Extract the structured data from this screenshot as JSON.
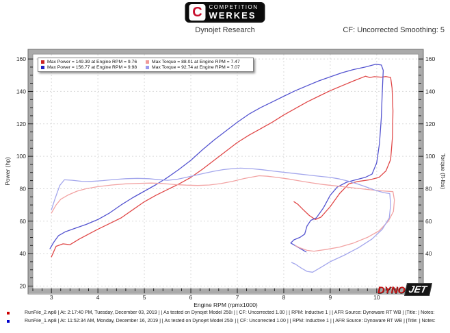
{
  "header": {
    "logo": {
      "emblem_letter": "C",
      "brand_top": "COMPETITION",
      "brand_bottom": "WERKES"
    },
    "subtitle": "Dynojet Research",
    "settings": "CF: Uncorrected Smoothing: 5"
  },
  "legend": {
    "items": [
      {
        "label": "Max Power = 149.39 at Engine RPM = 9.76",
        "color": "#cc2222"
      },
      {
        "label": "Max Torque = 88.01 at Engine RPM = 7.47",
        "color": "#ef9a9a"
      },
      {
        "label": "Max Power = 156.77 at Engine RPM = 9.98",
        "color": "#2424c4"
      },
      {
        "label": "Max Torque = 92.74 at Engine RPM = 7.07",
        "color": "#9a9aee"
      }
    ]
  },
  "watermark": {
    "dyno": "DYNO",
    "jet": "JET"
  },
  "footer": {
    "runs": [
      {
        "color": "#cc0000",
        "text": "RunFile_2.wp8 [ At: 2:17:40 PM, Tuesday, December 03, 2019 ] [ As tested on Dynojet Model 250i ] [ CF: Uncorrected 1.00 ] [ RPM: Inductive 1 ] [ AFR Source: Dynoware RT WB ] [Title: ]   Notes:"
      },
      {
        "color": "#0000cc",
        "text": "RunFile_1.wp8 [ At: 11:52:34 AM, Monday, December 16, 2019 ] [ As tested on Dynojet Model 250i ] [ CF: Uncorrected 1.00 ] [ RPM: Inductive 1 ] [ AFR Source: Dynoware RT WB ] [Title: ]   Notes:"
      }
    ]
  },
  "chart_data": {
    "type": "line",
    "xlabel": "Engine RPM (rpmx1000)",
    "ylabel_left": "Power (hp)",
    "ylabel_right": "Torque (ft-lbs)",
    "xlim": [
      2.6,
      10.9
    ],
    "ylim": [
      18.5,
      163
    ],
    "x_major_ticks": [
      3,
      4,
      5,
      6,
      7,
      8,
      9,
      10
    ],
    "x_minor_step": 0.2,
    "y_major_ticks": [
      20,
      40,
      60,
      80,
      100,
      120,
      140,
      160
    ],
    "y_minor_step": 5,
    "grid": "dashed",
    "legend_position": "top-left",
    "series": [
      {
        "name": "RunFile_2 Power (hp)",
        "color": "#e04848",
        "max_label": "Max Power = 149.39 at Engine RPM = 9.76",
        "points": [
          [
            3.0,
            38
          ],
          [
            3.1,
            44.5
          ],
          [
            3.25,
            46
          ],
          [
            3.4,
            45.5
          ],
          [
            3.6,
            49
          ],
          [
            3.8,
            52
          ],
          [
            4.0,
            55
          ],
          [
            4.25,
            58.5
          ],
          [
            4.5,
            62
          ],
          [
            4.75,
            67
          ],
          [
            5.0,
            72
          ],
          [
            5.25,
            76
          ],
          [
            5.5,
            79.5
          ],
          [
            5.75,
            83
          ],
          [
            6.0,
            87
          ],
          [
            6.25,
            92
          ],
          [
            6.5,
            97.5
          ],
          [
            6.75,
            103
          ],
          [
            7.0,
            108.5
          ],
          [
            7.25,
            113
          ],
          [
            7.5,
            117
          ],
          [
            7.75,
            121
          ],
          [
            8.0,
            125.5
          ],
          [
            8.25,
            129.5
          ],
          [
            8.5,
            133.5
          ],
          [
            8.75,
            137
          ],
          [
            9.0,
            140.5
          ],
          [
            9.25,
            143.5
          ],
          [
            9.5,
            146.5
          ],
          [
            9.76,
            149.4
          ],
          [
            9.85,
            148.6
          ],
          [
            9.95,
            149.1
          ],
          [
            10.1,
            148.8
          ],
          [
            10.2,
            149.2
          ],
          [
            10.3,
            148.6
          ],
          [
            10.33,
            142
          ],
          [
            10.35,
            128
          ],
          [
            10.34,
            112
          ],
          [
            10.3,
            98
          ],
          [
            10.2,
            91
          ],
          [
            10.05,
            87
          ],
          [
            9.85,
            85.5
          ],
          [
            9.6,
            84.5
          ],
          [
            9.4,
            83
          ],
          [
            9.2,
            77
          ],
          [
            9.0,
            69
          ],
          [
            8.8,
            62.5
          ],
          [
            8.68,
            61
          ],
          [
            8.55,
            63.5
          ],
          [
            8.42,
            67
          ],
          [
            8.3,
            70.5
          ],
          [
            8.22,
            72
          ]
        ]
      },
      {
        "name": "RunFile_1 Power (hp)",
        "color": "#5454d0",
        "max_label": "Max Power = 156.77 at Engine RPM = 9.98",
        "points": [
          [
            2.97,
            43
          ],
          [
            3.05,
            47
          ],
          [
            3.15,
            51
          ],
          [
            3.3,
            53.5
          ],
          [
            3.5,
            55.5
          ],
          [
            3.75,
            58
          ],
          [
            4.0,
            61
          ],
          [
            4.25,
            65
          ],
          [
            4.5,
            70
          ],
          [
            4.75,
            74.5
          ],
          [
            5.0,
            78.5
          ],
          [
            5.25,
            82.5
          ],
          [
            5.5,
            87
          ],
          [
            5.75,
            92
          ],
          [
            6.0,
            97.5
          ],
          [
            6.25,
            104
          ],
          [
            6.5,
            110
          ],
          [
            6.75,
            115.5
          ],
          [
            7.0,
            121
          ],
          [
            7.25,
            126
          ],
          [
            7.5,
            130
          ],
          [
            7.75,
            133.5
          ],
          [
            8.0,
            137
          ],
          [
            8.25,
            140.5
          ],
          [
            8.5,
            143.5
          ],
          [
            8.75,
            146.5
          ],
          [
            9.0,
            149
          ],
          [
            9.25,
            151.5
          ],
          [
            9.5,
            153.5
          ],
          [
            9.75,
            155
          ],
          [
            9.98,
            156.8
          ],
          [
            10.1,
            156.3
          ],
          [
            10.14,
            153
          ],
          [
            10.12,
            140
          ],
          [
            10.1,
            124
          ],
          [
            10.06,
            108
          ],
          [
            10.0,
            96
          ],
          [
            9.9,
            89
          ],
          [
            9.75,
            87
          ],
          [
            9.55,
            85.5
          ],
          [
            9.35,
            84
          ],
          [
            9.15,
            81
          ],
          [
            9.0,
            76
          ],
          [
            8.85,
            68
          ],
          [
            8.7,
            62
          ],
          [
            8.58,
            60.5
          ],
          [
            8.5,
            57
          ],
          [
            8.45,
            52
          ],
          [
            8.35,
            50
          ],
          [
            8.22,
            48.5
          ],
          [
            8.15,
            46.5
          ],
          [
            8.3,
            44
          ],
          [
            8.48,
            41
          ]
        ]
      },
      {
        "name": "RunFile_2 Torque (ft-lbs)",
        "color": "#f2a3a3",
        "max_label": "Max Torque = 88.01 at Engine RPM = 7.47",
        "points": [
          [
            3.0,
            65
          ],
          [
            3.1,
            70
          ],
          [
            3.2,
            73.5
          ],
          [
            3.35,
            76
          ],
          [
            3.55,
            78.5
          ],
          [
            3.75,
            80
          ],
          [
            4.0,
            81.3
          ],
          [
            4.3,
            82.3
          ],
          [
            4.6,
            83
          ],
          [
            4.9,
            83.3
          ],
          [
            5.15,
            83.5
          ],
          [
            5.4,
            83.2
          ],
          [
            5.65,
            82.6
          ],
          [
            5.9,
            82.2
          ],
          [
            6.15,
            82
          ],
          [
            6.4,
            82.3
          ],
          [
            6.65,
            83.2
          ],
          [
            6.9,
            84.6
          ],
          [
            7.15,
            86.3
          ],
          [
            7.47,
            88
          ],
          [
            7.65,
            87.7
          ],
          [
            7.85,
            87
          ],
          [
            8.1,
            86
          ],
          [
            8.35,
            84.8
          ],
          [
            8.6,
            83.6
          ],
          [
            8.85,
            82.6
          ],
          [
            9.1,
            81.8
          ],
          [
            9.35,
            81
          ],
          [
            9.6,
            80.2
          ],
          [
            9.85,
            79.4
          ],
          [
            10.1,
            78.7
          ],
          [
            10.35,
            78.2
          ],
          [
            10.38,
            73
          ],
          [
            10.36,
            66
          ],
          [
            10.25,
            60
          ],
          [
            10.05,
            54
          ],
          [
            9.8,
            50
          ],
          [
            9.5,
            46.5
          ],
          [
            9.2,
            44
          ],
          [
            8.9,
            42.5
          ],
          [
            8.65,
            41.5
          ],
          [
            8.5,
            42
          ],
          [
            8.35,
            43.5
          ],
          [
            8.25,
            45
          ]
        ]
      },
      {
        "name": "RunFile_1 Torque (ft-lbs)",
        "color": "#a3a6ec",
        "max_label": "Max Torque = 92.74 at Engine RPM = 7.07",
        "points": [
          [
            3.0,
            67
          ],
          [
            3.08,
            74
          ],
          [
            3.18,
            82
          ],
          [
            3.28,
            85.5
          ],
          [
            3.45,
            85.2
          ],
          [
            3.65,
            84.6
          ],
          [
            3.85,
            84.5
          ],
          [
            4.1,
            85
          ],
          [
            4.35,
            85.7
          ],
          [
            4.6,
            86.2
          ],
          [
            4.85,
            86.4
          ],
          [
            5.1,
            86.2
          ],
          [
            5.3,
            85.6
          ],
          [
            5.5,
            85.2
          ],
          [
            5.7,
            85.8
          ],
          [
            5.9,
            87
          ],
          [
            6.1,
            88.3
          ],
          [
            6.3,
            89.6
          ],
          [
            6.5,
            90.8
          ],
          [
            6.7,
            91.8
          ],
          [
            6.9,
            92.4
          ],
          [
            7.07,
            92.7
          ],
          [
            7.3,
            92.4
          ],
          [
            7.55,
            91.7
          ],
          [
            7.8,
            90.8
          ],
          [
            8.05,
            90
          ],
          [
            8.3,
            89.2
          ],
          [
            8.55,
            88.4
          ],
          [
            8.8,
            87.6
          ],
          [
            9.0,
            87
          ],
          [
            9.2,
            86
          ],
          [
            9.4,
            84.6
          ],
          [
            9.6,
            82.8
          ],
          [
            9.8,
            80.8
          ],
          [
            10.0,
            78.8
          ],
          [
            10.15,
            77.6
          ],
          [
            10.28,
            77
          ],
          [
            10.3,
            70
          ],
          [
            10.27,
            62
          ],
          [
            10.12,
            55
          ],
          [
            9.9,
            49
          ],
          [
            9.6,
            43.5
          ],
          [
            9.3,
            39
          ],
          [
            9.0,
            35
          ],
          [
            8.8,
            31.5
          ],
          [
            8.62,
            28.5
          ],
          [
            8.5,
            29
          ],
          [
            8.38,
            31
          ],
          [
            8.25,
            33.5
          ],
          [
            8.17,
            34.5
          ]
        ]
      }
    ]
  }
}
